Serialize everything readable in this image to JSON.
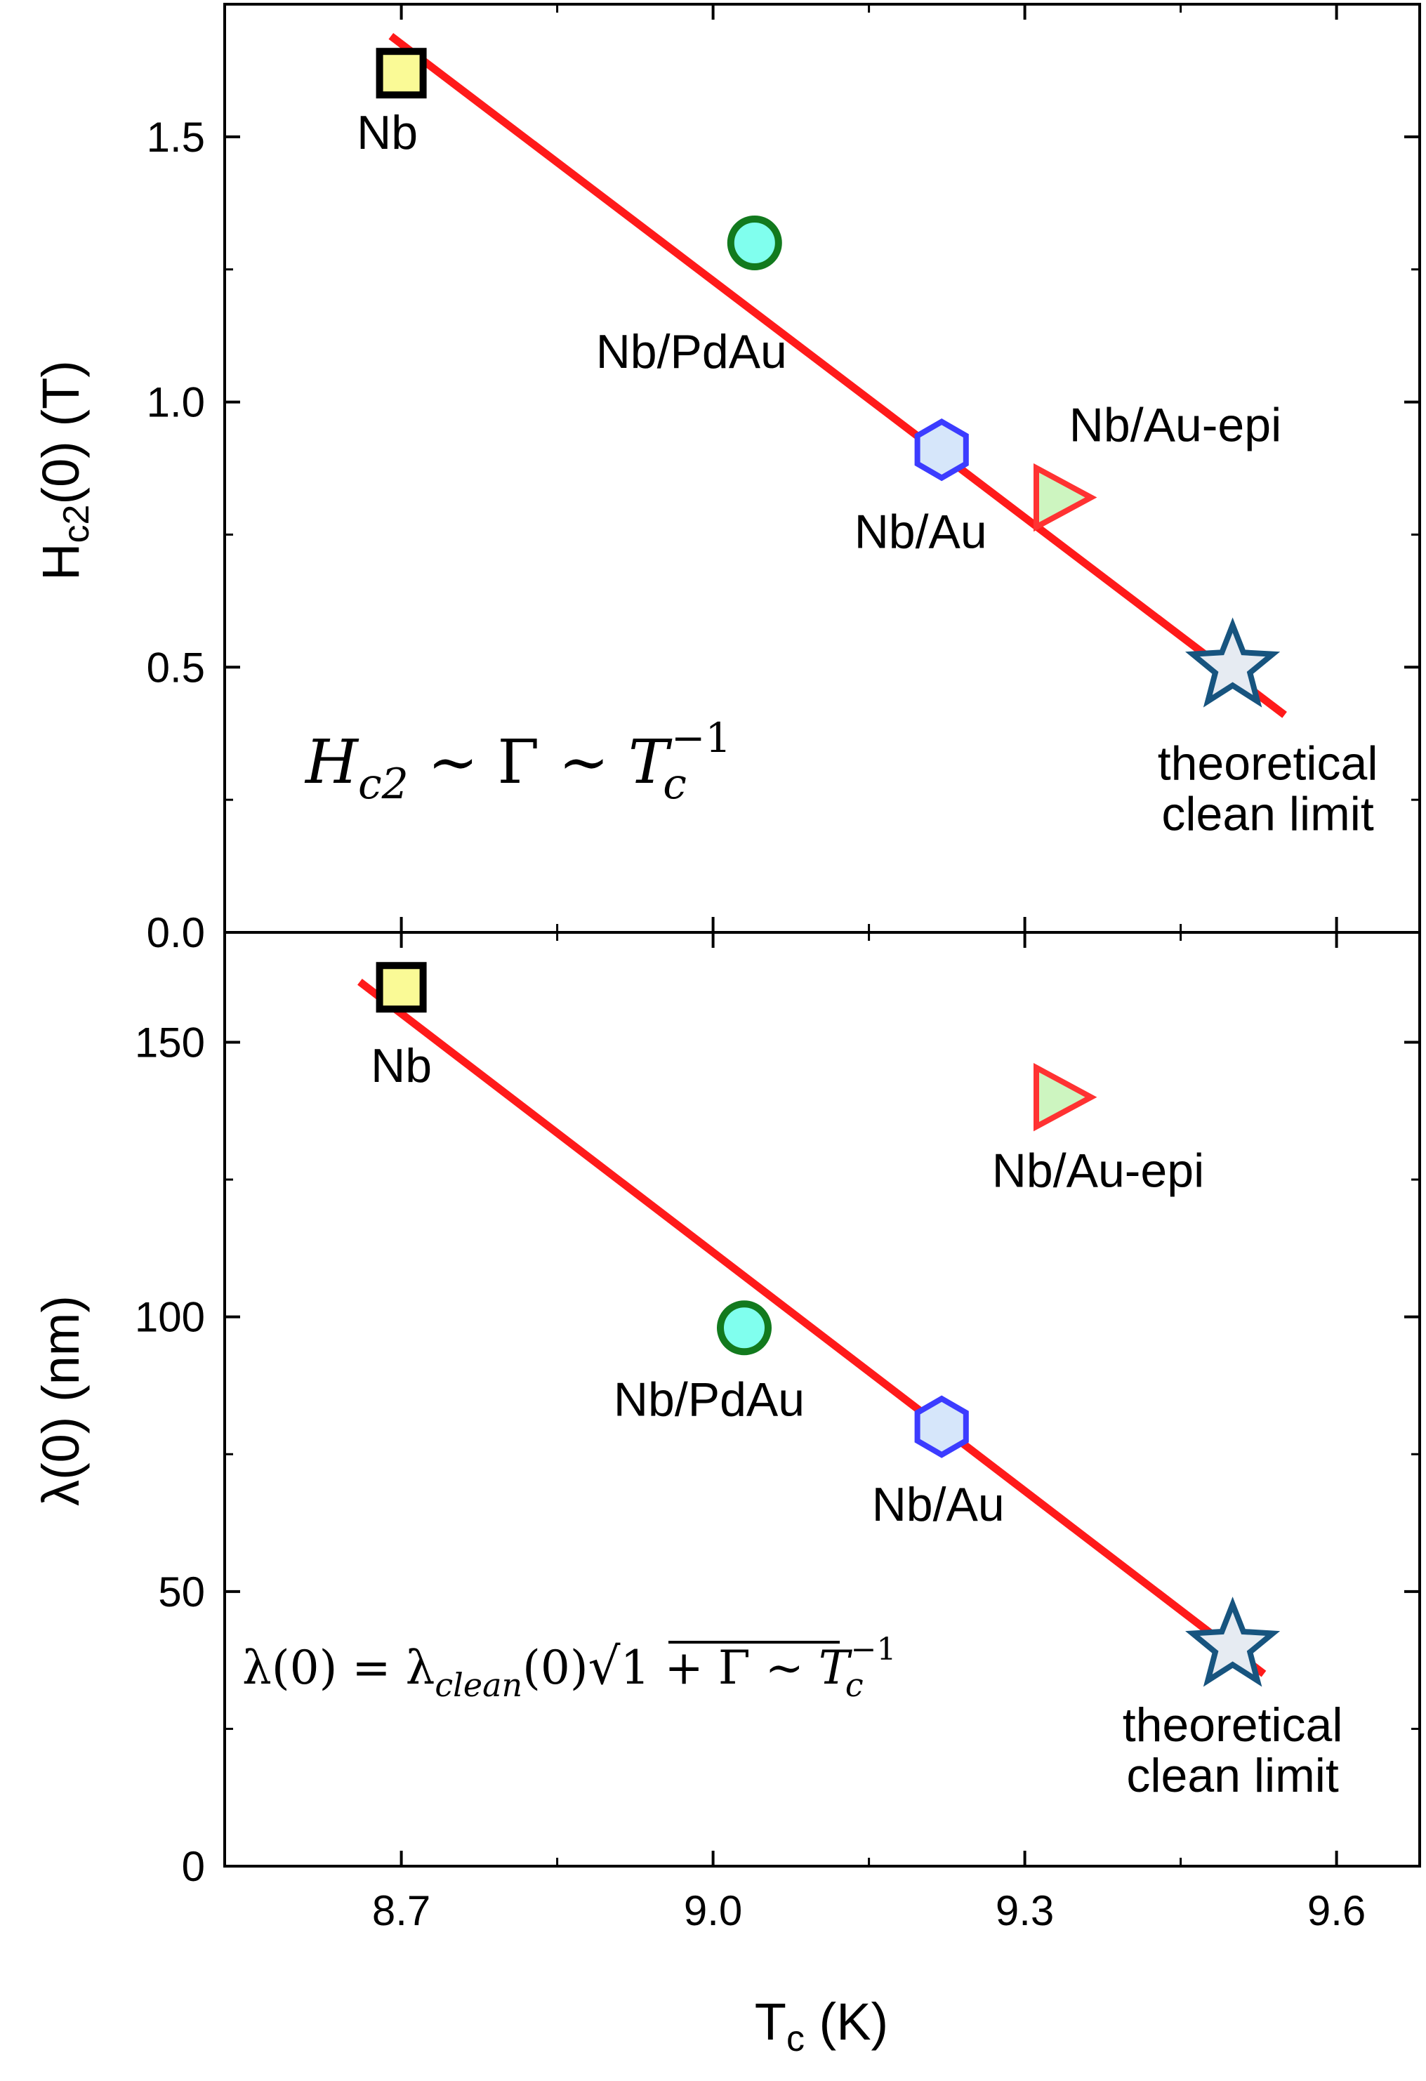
{
  "chart_data": [
    {
      "type": "scatter",
      "panel": "top",
      "xlabel": {
        "main": "T",
        "sub": "c",
        "units": " (K)"
      },
      "ylabel": {
        "main": "H",
        "sub": "c2",
        "rest": "(0) (T)"
      },
      "xlim": [
        8.53,
        9.68
      ],
      "ylim": [
        0,
        1.75
      ],
      "xticks": [
        {
          "value": 8.7,
          "label": "8.7"
        },
        {
          "value": 9.0,
          "label": "9.0"
        },
        {
          "value": 9.3,
          "label": "9.3"
        },
        {
          "value": 9.6,
          "label": "9.6"
        }
      ],
      "yticks": [
        {
          "value": 0.0,
          "label": "0.0"
        },
        {
          "value": 0.5,
          "label": "0.5"
        },
        {
          "value": 1.0,
          "label": "1.0"
        },
        {
          "value": 1.5,
          "label": "1.5"
        }
      ],
      "fit_line": {
        "x": [
          8.69,
          9.55
        ],
        "y": [
          1.69,
          0.41
        ],
        "color": "#ff1a1a"
      },
      "points": [
        {
          "name": "Nb",
          "label": "Nb",
          "x": 8.7,
          "y": 1.62,
          "marker": "square",
          "fill": "#fafa96",
          "stroke": "#000000"
        },
        {
          "name": "Nb/PdAu",
          "label": "Nb/PdAu",
          "x": 9.04,
          "y": 1.3,
          "marker": "circle",
          "fill": "#80ffee",
          "stroke": "#127a1e"
        },
        {
          "name": "Nb/Au",
          "label": "Nb/Au",
          "x": 9.22,
          "y": 0.91,
          "marker": "hexagon",
          "fill": "#d6e6fa",
          "stroke": "#3c3cff"
        },
        {
          "name": "Nb/Au-epi",
          "label": "Nb/Au-epi",
          "x": 9.33,
          "y": 0.82,
          "marker": "triangle-right",
          "fill": "#cdf5c0",
          "stroke": "#ff3232"
        },
        {
          "name": "theoretical clean limit",
          "label": [
            "theoretical",
            "clean limit"
          ],
          "x": 9.5,
          "y": 0.5,
          "marker": "star",
          "fill": "#e6ebf2",
          "stroke": "#17547f"
        }
      ],
      "annotation": "Hc2 ~ Γ ~ Tc^-1"
    },
    {
      "type": "scatter",
      "panel": "bottom",
      "xlabel": {
        "main": "T",
        "sub": "c",
        "units": " (K)"
      },
      "ylabel": {
        "main": "λ(0) (nm)"
      },
      "xlim": [
        8.53,
        9.68
      ],
      "ylim": [
        0,
        170
      ],
      "xticks": [
        {
          "value": 8.7,
          "label": "8.7"
        },
        {
          "value": 9.0,
          "label": "9.0"
        },
        {
          "value": 9.3,
          "label": "9.3"
        },
        {
          "value": 9.6,
          "label": "9.6"
        }
      ],
      "yticks": [
        {
          "value": 0,
          "label": "0"
        },
        {
          "value": 50,
          "label": "50"
        },
        {
          "value": 100,
          "label": "100"
        },
        {
          "value": 150,
          "label": "150"
        }
      ],
      "fit_line": {
        "x": [
          8.66,
          9.53
        ],
        "y": [
          161,
          35
        ],
        "color": "#ff1a1a"
      },
      "points": [
        {
          "name": "Nb",
          "label": "Nb",
          "x": 8.7,
          "y": 160,
          "marker": "square",
          "fill": "#fafa96",
          "stroke": "#000000"
        },
        {
          "name": "Nb/PdAu",
          "label": "Nb/PdAu",
          "x": 9.03,
          "y": 98,
          "marker": "circle",
          "fill": "#80ffee",
          "stroke": "#127a1e"
        },
        {
          "name": "Nb/Au",
          "label": "Nb/Au",
          "x": 9.22,
          "y": 80,
          "marker": "hexagon",
          "fill": "#d6e6fa",
          "stroke": "#3c3cff"
        },
        {
          "name": "Nb/Au-epi",
          "label": "Nb/Au-epi",
          "x": 9.33,
          "y": 140,
          "marker": "triangle-right",
          "fill": "#cdf5c0",
          "stroke": "#ff3232"
        },
        {
          "name": "theoretical clean limit",
          "label": [
            "theoretical",
            "clean limit"
          ],
          "x": 9.5,
          "y": 40,
          "marker": "star",
          "fill": "#e6ebf2",
          "stroke": "#17547f"
        }
      ],
      "annotation": "λ(0) = λclean(0)√(1+Γ) ~ Tc^-1"
    }
  ],
  "formulas": {
    "top": {
      "H": "H",
      "c2": "c2",
      "sim": " ∼ ",
      "Gamma": "Γ",
      "T": "T",
      "c": "c",
      "exp": "−1"
    },
    "bottom": {
      "lam0": "λ(0) = λ",
      "clean": "clean",
      "mid": "(0)",
      "sqrt": "√",
      "radicand": "1 + Γ",
      "sim": " ∼ ",
      "T": "T",
      "c": "c",
      "exp": "−1"
    }
  }
}
